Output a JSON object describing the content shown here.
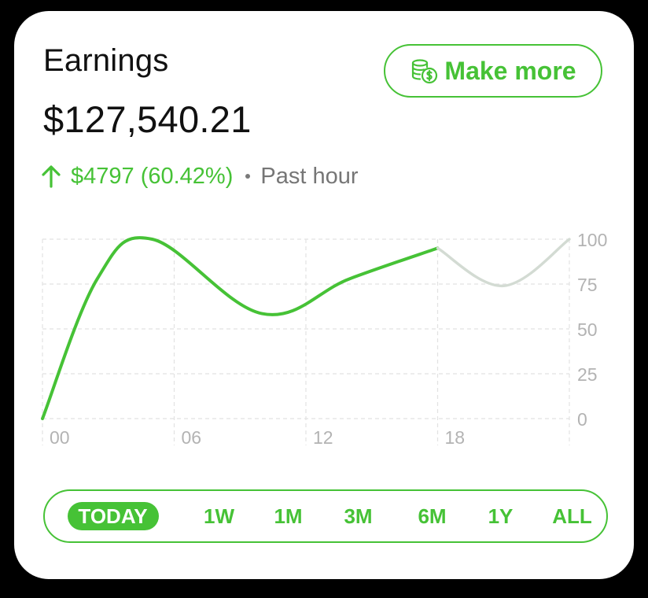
{
  "header": {
    "title": "Earnings",
    "amount": "$127,540.21",
    "change_value": "$4797 (60.42%)",
    "change_period": "Past hour",
    "change_icon": "arrow-up-icon"
  },
  "action": {
    "label": "Make more",
    "icon": "coins-dollar-icon"
  },
  "colors": {
    "accent": "#46c236",
    "projection": "#d3dbd3",
    "grid": "#e2e2e2",
    "tick": "#b3b3b3"
  },
  "chart_data": {
    "type": "line",
    "x_ticks": [
      "00",
      "06",
      "12",
      "18"
    ],
    "y_ticks": [
      "0",
      "25",
      "50",
      "75",
      "100"
    ],
    "xlim": [
      0,
      24
    ],
    "ylim": [
      0,
      100
    ],
    "grid": true,
    "axis_position": "right",
    "series": [
      {
        "style": "solid",
        "color": "#46c236",
        "points": [
          [
            0,
            0
          ],
          [
            2.5,
            78
          ],
          [
            5,
            100
          ],
          [
            10,
            58.5
          ],
          [
            14,
            78
          ],
          [
            18,
            95
          ]
        ]
      },
      {
        "style": "projection",
        "color": "#d3dbd3",
        "points": [
          [
            18,
            95
          ],
          [
            21,
            74
          ],
          [
            24,
            100
          ]
        ]
      }
    ]
  },
  "ranges": {
    "selected": "TODAY",
    "items": [
      "TODAY",
      "1W",
      "1M",
      "3M",
      "6M",
      "1Y",
      "ALL"
    ]
  }
}
